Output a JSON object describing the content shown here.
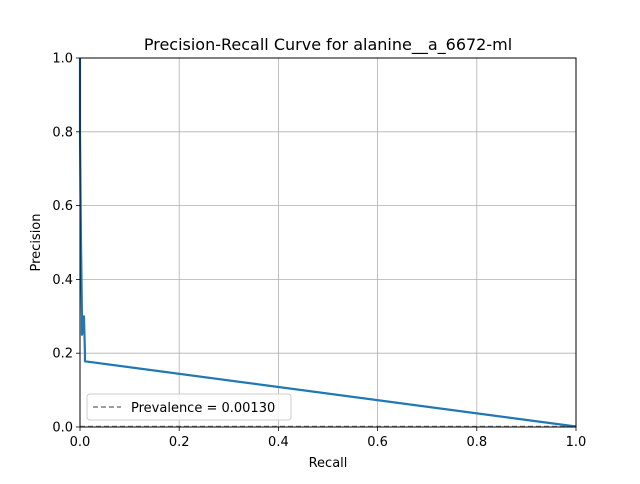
{
  "chart_data": {
    "type": "line",
    "title": "Precision-Recall Curve for alanine__a_6672-ml",
    "xlabel": "Recall",
    "ylabel": "Precision",
    "xlim": [
      0.0,
      1.0
    ],
    "ylim": [
      0.0,
      1.0
    ],
    "x_ticks": [
      0.0,
      0.2,
      0.4,
      0.6,
      0.8,
      1.0
    ],
    "y_ticks": [
      0.0,
      0.2,
      0.4,
      0.6,
      0.8,
      1.0
    ],
    "x_tick_labels": [
      "0.0",
      "0.2",
      "0.4",
      "0.6",
      "0.8",
      "1.0"
    ],
    "y_tick_labels": [
      "0.0",
      "0.2",
      "0.4",
      "0.6",
      "0.8",
      "1.0"
    ],
    "grid": true,
    "legend_position": "lower-left",
    "series": [
      {
        "color": "#1f77b4",
        "style": "solid",
        "x": [
          0.0,
          0.0,
          0.002,
          0.004,
          0.004,
          0.006,
          0.008,
          0.008,
          0.01,
          0.01,
          1.0
        ],
        "y": [
          1.0,
          0.8,
          0.5,
          0.3,
          0.25,
          0.27,
          0.29,
          0.3,
          0.2,
          0.178,
          0.0013
        ]
      },
      {
        "name": "Prevalence = 0.00130",
        "color": "#7f7f7f",
        "style": "dashed",
        "x": [
          0.0,
          1.0
        ],
        "y": [
          0.0013,
          0.0013
        ]
      }
    ]
  }
}
